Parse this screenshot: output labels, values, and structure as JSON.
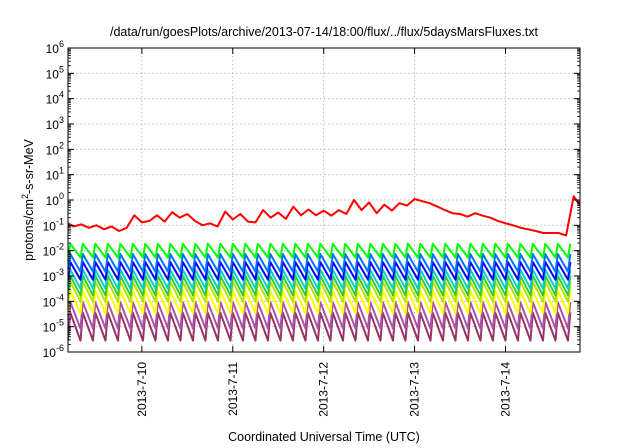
{
  "chart_data": {
    "type": "line",
    "title": "/data/run/goesPlots/archive/2013-07-14/18:00/flux/../flux/5daysMarsFluxes.txt",
    "xlabel": "Coordinated Universal Time (UTC)",
    "ylabel": "protons/cm2-s-sr-MeV",
    "y_scale": "log",
    "ylim": [
      1e-06,
      1000000.0
    ],
    "xlim": [
      "2013-07-09 04:30",
      "2013-07-14 19:40"
    ],
    "x_ticks": [
      "2013-7-10",
      "2013-7-11",
      "2013-7-12",
      "2013-7-13",
      "2013-7-14"
    ],
    "y_ticks": [
      {
        "base": "10",
        "exp": "-6"
      },
      {
        "base": "10",
        "exp": "-5"
      },
      {
        "base": "10",
        "exp": "-4"
      },
      {
        "base": "10",
        "exp": "-3"
      },
      {
        "base": "10",
        "exp": "-2"
      },
      {
        "base": "10",
        "exp": "-1"
      },
      {
        "base": "10",
        "exp": "0"
      },
      {
        "base": "10",
        "exp": "1"
      },
      {
        "base": "10",
        "exp": "2"
      },
      {
        "base": "10",
        "exp": "3"
      },
      {
        "base": "10",
        "exp": "4"
      },
      {
        "base": "10",
        "exp": "5"
      },
      {
        "base": "10",
        "exp": "6"
      }
    ],
    "grid": true,
    "legend": "none",
    "series": [
      {
        "color": "#ff0000",
        "x": [
          "2013-07-09 04:30",
          "2013-07-09 06:00",
          "2013-07-09 08:00",
          "2013-07-09 10:00",
          "2013-07-09 12:00",
          "2013-07-09 14:00",
          "2013-07-09 16:00",
          "2013-07-09 18:00",
          "2013-07-09 20:00",
          "2013-07-09 22:00",
          "2013-07-10 00:00",
          "2013-07-10 02:00",
          "2013-07-10 04:00",
          "2013-07-10 06:00",
          "2013-07-10 08:00",
          "2013-07-10 10:00",
          "2013-07-10 12:00",
          "2013-07-10 14:00",
          "2013-07-10 16:00",
          "2013-07-10 18:00",
          "2013-07-10 20:00",
          "2013-07-10 22:00",
          "2013-07-11 00:00",
          "2013-07-11 02:00",
          "2013-07-11 04:00",
          "2013-07-11 06:00",
          "2013-07-11 08:00",
          "2013-07-11 10:00",
          "2013-07-11 12:00",
          "2013-07-11 14:00",
          "2013-07-11 16:00",
          "2013-07-11 18:00",
          "2013-07-11 20:00",
          "2013-07-11 22:00",
          "2013-07-12 00:00",
          "2013-07-12 02:00",
          "2013-07-12 04:00",
          "2013-07-12 06:00",
          "2013-07-12 08:00",
          "2013-07-12 10:00",
          "2013-07-12 12:00",
          "2013-07-12 14:00",
          "2013-07-12 16:00",
          "2013-07-12 18:00",
          "2013-07-12 20:00",
          "2013-07-12 22:00",
          "2013-07-13 00:00",
          "2013-07-13 02:00",
          "2013-07-13 04:00",
          "2013-07-13 06:00",
          "2013-07-13 08:00",
          "2013-07-13 10:00",
          "2013-07-13 12:00",
          "2013-07-13 14:00",
          "2013-07-13 16:00",
          "2013-07-13 18:00",
          "2013-07-13 20:00",
          "2013-07-13 22:00",
          "2013-07-14 00:00",
          "2013-07-14 02:00",
          "2013-07-14 04:00",
          "2013-07-14 06:00",
          "2013-07-14 08:00",
          "2013-07-14 10:00",
          "2013-07-14 12:00",
          "2013-07-14 14:00",
          "2013-07-14 16:00",
          "2013-07-14 18:00",
          "2013-07-14 19:40"
        ],
        "values": [
          0.12,
          0.09,
          0.11,
          0.08,
          0.1,
          0.07,
          0.09,
          0.06,
          0.08,
          0.25,
          0.13,
          0.15,
          0.25,
          0.14,
          0.33,
          0.2,
          0.28,
          0.15,
          0.1,
          0.12,
          0.09,
          0.35,
          0.17,
          0.28,
          0.14,
          0.13,
          0.4,
          0.2,
          0.32,
          0.18,
          0.55,
          0.25,
          0.42,
          0.25,
          0.38,
          0.24,
          0.4,
          0.28,
          1.0,
          0.4,
          0.8,
          0.3,
          0.65,
          0.38,
          0.75,
          0.6,
          1.1,
          0.9,
          0.75,
          0.55,
          0.4,
          0.3,
          0.28,
          0.22,
          0.3,
          0.24,
          0.2,
          0.15,
          0.12,
          0.1,
          0.08,
          0.07,
          0.06,
          0.05,
          0.05,
          0.05,
          0.04,
          1.4,
          0.6
        ]
      },
      {
        "color": "#00ff00",
        "base": 0.01,
        "amp": 0.55
      },
      {
        "color": "#0072ff",
        "base": 0.0033,
        "amp": 0.7
      },
      {
        "color": "#0000ff",
        "base": 0.0016,
        "amp": 0.7
      },
      {
        "color": "#00d0c0",
        "base": 0.00075,
        "amp": 0.75
      },
      {
        "color": "#33cc33",
        "base": 0.00042,
        "amp": 0.78
      },
      {
        "color": "#b8e000",
        "base": 0.00024,
        "amp": 0.8
      },
      {
        "color": "#ffff00",
        "base": 9.5e-05,
        "amp": 0.9
      },
      {
        "color": "#a855a8",
        "base": 2.8e-05,
        "amp": 1.05
      },
      {
        "color": "#993366",
        "base": 1e-05,
        "amp": 1.1
      }
    ],
    "sawtooth_period_hours": 3.3
  }
}
